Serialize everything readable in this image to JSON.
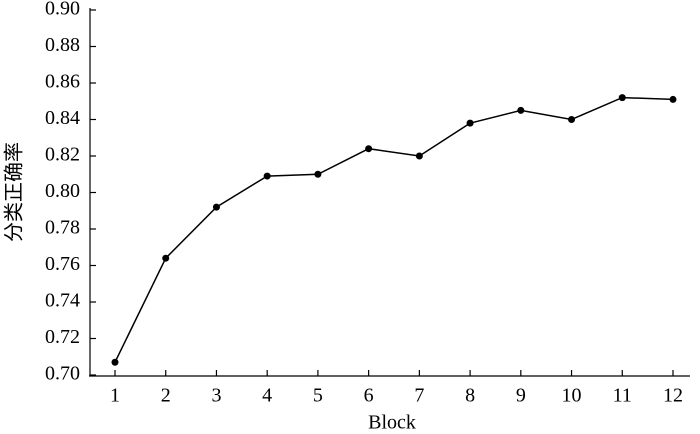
{
  "chart_data": {
    "type": "line",
    "x_label": "Block",
    "y_label": "分类正确率",
    "categories": [
      "1",
      "2",
      "3",
      "4",
      "5",
      "6",
      "7",
      "8",
      "9",
      "10",
      "11",
      "12"
    ],
    "values": [
      0.707,
      0.764,
      0.792,
      0.809,
      0.81,
      0.824,
      0.82,
      0.838,
      0.845,
      0.84,
      0.852,
      0.851
    ],
    "color": "#000000",
    "ylim": [
      0.7,
      0.9
    ],
    "yticks": [
      {
        "value": 0.7,
        "label": "0.70"
      },
      0.72,
      0.74,
      0.76,
      0.78,
      {
        "value": 0.8,
        "label": "0.80"
      },
      0.82,
      0.84,
      0.86,
      0.88,
      {
        "value": 0.9,
        "label": "0.90"
      }
    ],
    "grid": false
  }
}
